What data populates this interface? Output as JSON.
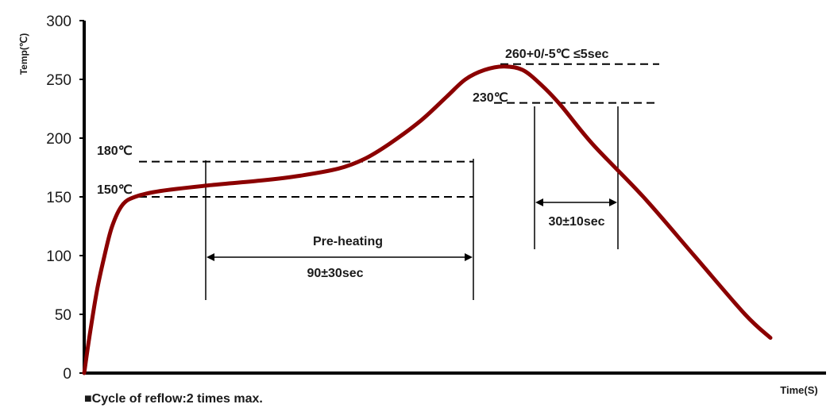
{
  "chart_data": {
    "type": "line",
    "title": "",
    "xlabel": "Time(S)",
    "ylabel": "Temp(℃)",
    "ylim": [
      0,
      300
    ],
    "yticks": [
      0,
      50,
      100,
      150,
      200,
      250,
      300
    ],
    "series": [
      {
        "values": [
          [
            0,
            0
          ],
          [
            4,
            30
          ],
          [
            10,
            70
          ],
          [
            16,
            100
          ],
          [
            22,
            125
          ],
          [
            30,
            143
          ],
          [
            40,
            150
          ],
          [
            60,
            155
          ],
          [
            100,
            160
          ],
          [
            140,
            164
          ],
          [
            170,
            168
          ],
          [
            200,
            174
          ],
          [
            220,
            182
          ],
          [
            240,
            195
          ],
          [
            265,
            215
          ],
          [
            285,
            235
          ],
          [
            300,
            250
          ],
          [
            315,
            258
          ],
          [
            330,
            261
          ],
          [
            345,
            258
          ],
          [
            360,
            245
          ],
          [
            375,
            228
          ],
          [
            400,
            195
          ],
          [
            440,
            150
          ],
          [
            480,
            100
          ],
          [
            520,
            50
          ],
          [
            540,
            30
          ]
        ],
        "color": "#8b0000"
      }
    ],
    "annotations": {
      "t180": "180℃",
      "t150": "150℃",
      "t230": "230℃",
      "peak": "260+0/-5℃ ≤5sec",
      "preheat_label": "Pre-heating",
      "preheat_time": "90±30sec",
      "reflow_time": "30±10sec"
    },
    "grid": false,
    "legend": "none"
  },
  "footnote": "■Cycle of reflow:2 times max."
}
